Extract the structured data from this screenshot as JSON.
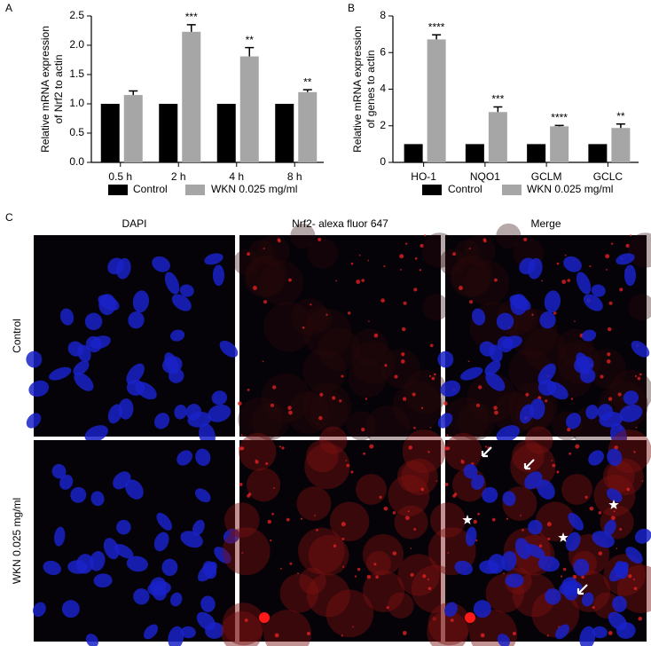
{
  "chart_data": [
    {
      "type": "bar",
      "panel": "A",
      "ylabel": [
        "Relative mRNA expression",
        "of Nrf2 to actin"
      ],
      "categories": [
        "0.5 h",
        "2 h",
        "4 h",
        "8 h"
      ],
      "series": [
        {
          "name": "Control",
          "color": "#000000",
          "values": [
            1,
            1,
            1,
            1
          ]
        },
        {
          "name": "WKN 0.025 mg/ml",
          "color": "#a6a6a6",
          "values": [
            1.15,
            2.23,
            1.81,
            1.2
          ],
          "errors": [
            0.07,
            0.12,
            0.15,
            0.04
          ],
          "significance": [
            null,
            "***",
            "**",
            "**"
          ]
        }
      ],
      "ylim": [
        0,
        2.5
      ],
      "yticks": [
        {
          "value": 0,
          "label": "0.0"
        },
        0.5,
        {
          "value": 1,
          "label": "1.0"
        },
        1.5,
        {
          "value": 2,
          "label": "2.0"
        },
        2.5
      ]
    },
    {
      "type": "bar",
      "panel": "B",
      "ylabel": [
        "Relative mRNA expression",
        "of genes to actin"
      ],
      "categories": [
        "HO-1",
        "NQO1",
        "GCLM",
        "GCLC"
      ],
      "series": [
        {
          "name": "Control",
          "color": "#000000",
          "values": [
            1,
            1,
            1,
            1
          ]
        },
        {
          "name": "WKN 0.025 mg/ml",
          "color": "#a6a6a6",
          "values": [
            6.72,
            2.75,
            1.97,
            1.88
          ],
          "errors": [
            0.25,
            0.28,
            0.05,
            0.22
          ],
          "significance": [
            "****",
            "***",
            "****",
            "**"
          ]
        }
      ],
      "ylim": [
        0,
        8
      ],
      "yticks": [
        0,
        2,
        4,
        6,
        8
      ]
    }
  ],
  "panel_c": {
    "label": "C",
    "columns": [
      "DAPI",
      "Nrf2- alexa fluor 647",
      "Merge"
    ],
    "rows": [
      "Control",
      "WKN 0.025 mg/ml"
    ]
  }
}
